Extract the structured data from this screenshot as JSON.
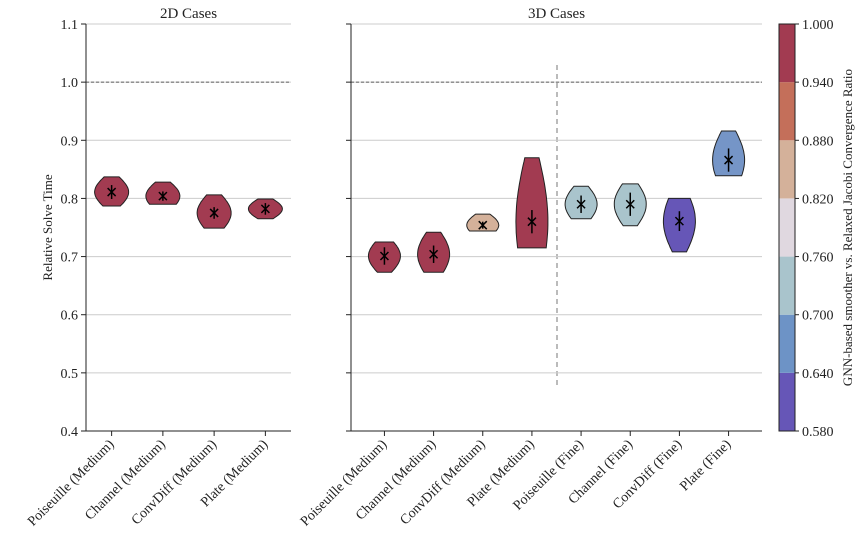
{
  "chart_data": [
    {
      "type": "violin",
      "title": "2D Cases",
      "ylabel": "Relative Solve Time",
      "categories": [
        "Poiseuille (Medium)",
        "Channel (Medium)",
        "ConvDiff (Medium)",
        "Plate (Medium)"
      ],
      "values": [
        0.811,
        0.804,
        0.775,
        0.782
      ],
      "errors": [
        0.012,
        0.008,
        0.01,
        0.01
      ],
      "mins": [
        0.787,
        0.79,
        0.749,
        0.765
      ],
      "maxs": [
        0.837,
        0.828,
        0.806,
        0.799
      ],
      "colors": [
        "#a23b51",
        "#a23b51",
        "#a23b51",
        "#a23b51"
      ],
      "ylim": [
        0.4,
        1.1
      ],
      "yticks": [
        0.4,
        0.5,
        0.6,
        0.7,
        0.8,
        0.9,
        {
          "value": 1,
          "label": "1.0"
        },
        1.1
      ],
      "hline": 1,
      "grid": true
    },
    {
      "type": "violin",
      "title": "3D Cases",
      "categories": [
        "Poiseuille (Medium)",
        "Channel (Medium)",
        "ConvDiff (Medium)",
        "Plate (Medium)",
        "Poiseuille (Fine)",
        "Channel (Fine)",
        "ConvDiff (Fine)",
        "Plate (Fine)"
      ],
      "values": [
        0.701,
        0.704,
        0.754,
        0.76,
        0.79,
        0.79,
        0.761,
        0.866
      ],
      "errors": [
        0.015,
        0.015,
        0.006,
        0.02,
        0.015,
        0.02,
        0.017,
        0.02
      ],
      "mins": [
        0.673,
        0.673,
        0.744,
        0.715,
        0.765,
        0.753,
        0.708,
        0.839
      ],
      "maxs": [
        0.725,
        0.742,
        0.773,
        0.87,
        0.821,
        0.825,
        0.8,
        0.916
      ],
      "colors": [
        "#a23b51",
        "#a23b51",
        "#d4b19a",
        "#a23b51",
        "#a9c4cc",
        "#a9c4cc",
        "#6656b7",
        "#7595c7"
      ],
      "ylim": [
        0.4,
        1.1
      ],
      "yticks": [
        0.4,
        0.5,
        0.6,
        0.7,
        0.8,
        0.9,
        1,
        1.1
      ],
      "hline": 1,
      "grid": true,
      "colorbar": {
        "label": "GNN-based smoother vs. Relaxed Jacobi Convergence Ratio",
        "lim": [
          0.58,
          1.0
        ],
        "ticks": [
          {
            "value": 0.58,
            "label": "0.580"
          },
          {
            "value": 0.64,
            "label": "0.640"
          },
          {
            "value": 0.7,
            "label": "0.700"
          },
          {
            "value": 0.76,
            "label": "0.760"
          },
          {
            "value": 0.82,
            "label": "0.820"
          },
          {
            "value": 0.88,
            "label": "0.880"
          },
          {
            "value": 0.94,
            "label": "0.940"
          },
          {
            "value": 1,
            "label": "1.000"
          }
        ],
        "colors": [
          "#6656b7",
          "#6d93c6",
          "#a9c4cc",
          "#e0d8e0",
          "#d4b19a",
          "#c46f5a",
          "#a23b51"
        ]
      }
    }
  ]
}
